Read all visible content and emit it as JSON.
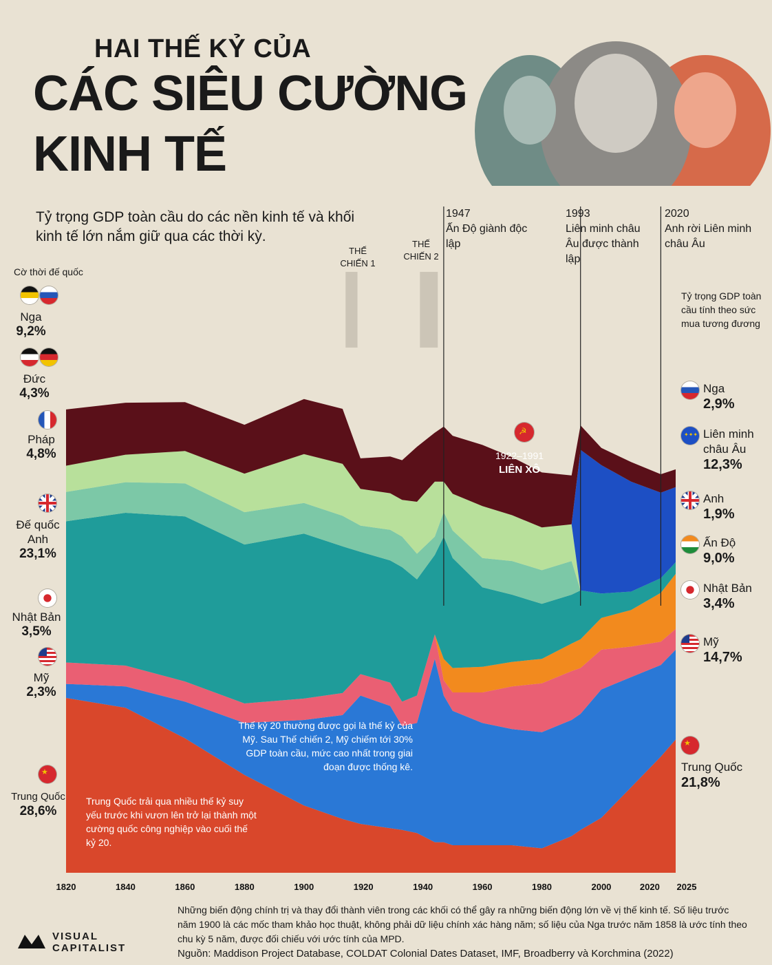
{
  "header": {
    "title_line1": "HAI THẾ KỶ CỦA",
    "title_line2": "CÁC SIÊU CƯỜNG",
    "title_line3": "KINH TẾ",
    "subtitle": "Tỷ trọng GDP toàn cầu do các nền kinh tế và khối kinh tế lớn nắm giữ qua các thời kỳ."
  },
  "legend_title": "Cờ thời đế quốc",
  "left_labels": [
    {
      "name": "Nga",
      "value": "9,2%"
    },
    {
      "name": "Đức",
      "value": "4,3%"
    },
    {
      "name": "Pháp",
      "value": "4,8%"
    },
    {
      "name": "Đế quốc Anh",
      "value": "23,1%"
    },
    {
      "name": "Nhật Bản",
      "value": "3,5%"
    },
    {
      "name": "Mỹ",
      "value": "2,3%"
    },
    {
      "name": "Trung Quốc",
      "value": "28,6%"
    }
  ],
  "right_note": "Tỷ trọng GDP toàn cầu tính theo sức mua tương đương",
  "right_labels": [
    {
      "name": "Nga",
      "value": "2,9%"
    },
    {
      "name": "Liên minh châu Âu",
      "value": "12,3%"
    },
    {
      "name": "Anh",
      "value": "1,9%"
    },
    {
      "name": "Ấn Độ",
      "value": "9,0%"
    },
    {
      "name": "Nhật Bản",
      "value": "3,4%"
    },
    {
      "name": "Mỹ",
      "value": "14,7%"
    },
    {
      "name": "Trung Quốc",
      "value": "21,8%"
    }
  ],
  "events": [
    {
      "year": "1947",
      "text": "Ấn Độ giành độc lập"
    },
    {
      "year": "1993",
      "text": "Liên minh châu Âu được thành lập"
    },
    {
      "year": "2020",
      "text": "Anh rời Liên minh châu Âu"
    }
  ],
  "wars": [
    "THẾ CHIẾN 1",
    "THẾ CHIẾN 2"
  ],
  "ussr": {
    "years": "1922–1991",
    "name": "LIÊN XÔ"
  },
  "notes": {
    "usa": "Thế kỷ 20 thường được gọi là thế kỷ của Mỹ. Sau Thế chiến 2, Mỹ chiếm tới 30% GDP toàn cầu, mức cao nhất trong giai đoạn được thống kê.",
    "china": "Trung Quốc trải qua nhiều thế kỷ suy yếu trước khi vươn lên trở lại thành một cường quốc công nghiệp vào cuối thế kỷ 20."
  },
  "footnote": "Những biến động chính trị và thay đổi thành viên trong các khối có thể gây ra những biến động lớn về vị thế kinh tế. Số liệu trước năm 1900 là các mốc tham khảo học thuật, không phải dữ liệu chính xác hàng năm; số liệu của Nga trước năm 1858 là ước tính theo chu kỳ 5 năm, được đối chiếu với ước tính của MPD.",
  "source": "Nguồn: Maddison Project Database, COLDAT Colonial Dates Dataset, IMF, Broadberry và Korchmina (2022)",
  "logo": {
    "line1": "VISUAL",
    "line2": "CAPITALIST"
  },
  "colors": {
    "china": "#d9472b",
    "usa": "#2a78d6",
    "japan": "#ea5f73",
    "india": "#f28a1e",
    "uk": "#1f9c9a",
    "france": "#7cc8a7",
    "germany": "#b8e09b",
    "russia": "#5a1019",
    "eu": "#1d4fc4"
  },
  "chart_data": {
    "type": "area",
    "stacked": true,
    "x": [
      1820,
      1840,
      1860,
      1880,
      1900,
      1913,
      1919,
      1929,
      1933,
      1938,
      1944,
      1947,
      1950,
      1960,
      1970,
      1980,
      1990,
      1993,
      2000,
      2010,
      2020,
      2025
    ],
    "xticks": [
      "1820",
      "1840",
      "1860",
      "1880",
      "1900",
      "1920",
      "1940",
      "1960",
      "1980",
      "2000",
      "2020",
      "2025"
    ],
    "ylim": [
      0,
      100
    ],
    "series": [
      {
        "name": "Trung Quốc",
        "values": [
          28.6,
          27,
          22,
          16,
          11,
          8.8,
          8,
          7.3,
          7,
          6.5,
          5,
          5,
          4.5,
          4.5,
          4.5,
          4,
          6,
          7,
          9,
          14,
          19,
          21.8
        ]
      },
      {
        "name": "Mỹ",
        "values": [
          2.3,
          3.5,
          6,
          8.5,
          14,
          17,
          21,
          20,
          17,
          18,
          30,
          24,
          22,
          20,
          19,
          19,
          19,
          19,
          21,
          18,
          15,
          14.7
        ]
      },
      {
        "name": "Nhật Bản",
        "values": [
          3.5,
          3.4,
          3.3,
          3.2,
          3.5,
          3.6,
          3.5,
          3.8,
          4,
          4.5,
          4,
          2.5,
          3,
          5,
          7,
          8,
          8,
          7.5,
          6.5,
          5,
          3.8,
          3.4
        ]
      },
      {
        "name": "Ấn Độ",
        "values": [
          null,
          null,
          null,
          null,
          null,
          null,
          null,
          null,
          null,
          null,
          null,
          3.5,
          4,
          4.2,
          4,
          4,
          4.5,
          4.7,
          5.2,
          6,
          8,
          9
        ]
      },
      {
        "name": "Đế quốc Anh",
        "values": [
          23.1,
          25,
          27,
          26,
          27,
          24,
          20,
          20,
          22,
          19,
          13,
          20,
          18,
          13,
          11,
          9,
          8,
          8,
          4,
          3,
          2.4,
          1.9
        ]
      },
      {
        "name": "Pháp",
        "values": [
          4.8,
          5,
          5.4,
          5.3,
          5,
          5,
          4.3,
          5,
          5,
          4.2,
          3,
          4,
          4.5,
          4.8,
          5.5,
          5.5,
          5.5,
          null,
          null,
          null,
          null,
          null
        ]
      },
      {
        "name": "Đức",
        "values": [
          4.3,
          4.5,
          5.3,
          6.3,
          8,
          8.5,
          6,
          6,
          6,
          8.5,
          9,
          5,
          6,
          8.5,
          7.5,
          7,
          6,
          null,
          null,
          null,
          null,
          null
        ]
      },
      {
        "name": "Liên minh châu Âu",
        "values": [
          null,
          null,
          null,
          null,
          null,
          null,
          null,
          null,
          null,
          null,
          null,
          null,
          null,
          null,
          null,
          null,
          null,
          23,
          21,
          18,
          14,
          12.3
        ]
      },
      {
        "name": "Nga",
        "values": [
          9.2,
          8.5,
          8,
          8,
          9,
          9,
          5,
          6,
          6.5,
          9,
          8,
          9,
          9.5,
          10,
          9.5,
          9,
          8,
          4,
          2.8,
          3.2,
          3,
          2.9
        ]
      }
    ]
  }
}
